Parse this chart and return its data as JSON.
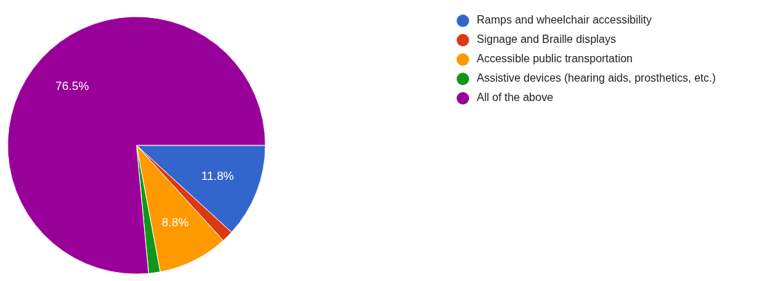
{
  "chart_data": {
    "type": "pie",
    "categories": [
      "Ramps and wheelchair accessibility",
      "Signage and Braille displays",
      "Accessible public transportation",
      "Assistive devices (hearing aids, prosthetics, etc.)",
      "All of the above"
    ],
    "values": [
      11.8,
      1.45,
      8.8,
      1.45,
      76.5
    ],
    "colors": [
      "#3366cc",
      "#dc3912",
      "#ff9900",
      "#109618",
      "#990099"
    ],
    "value_labels": [
      "11.8%",
      null,
      "8.8%",
      null,
      "76.5%"
    ],
    "legend": "right"
  }
}
